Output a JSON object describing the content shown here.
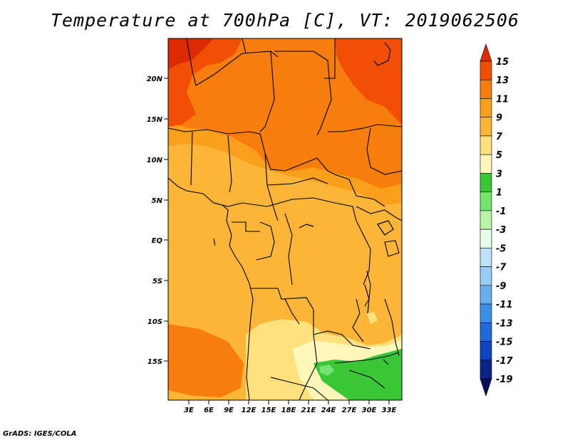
{
  "title": "Temperature at 700hPa [C], VT: 2019062506",
  "credit": "GrADS: IGES/COLA",
  "map": {
    "lat_ticks": [
      "20N",
      "15N",
      "10N",
      "5N",
      "EQ",
      "5S",
      "10S",
      "15S"
    ],
    "lon_ticks": [
      "3E",
      "6E",
      "9E",
      "12E",
      "15E",
      "18E",
      "21E",
      "24E",
      "27E",
      "30E",
      "33E"
    ]
  },
  "colorbar": {
    "levels": [
      "15",
      "13",
      "11",
      "9",
      "7",
      "5",
      "3",
      "1",
      "-1",
      "-3",
      "-5",
      "-7",
      "-9",
      "-11",
      "-13",
      "-15",
      "-17",
      "-19"
    ],
    "colors": [
      "#dd2a02",
      "#f24f06",
      "#f77d0d",
      "#fa9f1b",
      "#fbb538",
      "#fee07c",
      "#fff7ba",
      "#39c738",
      "#75e46e",
      "#b8f5a8",
      "#e6fce7",
      "#bfe2fb",
      "#98cdf5",
      "#6aaeef",
      "#3c8ee6",
      "#1f6ad8",
      "#0c45bd",
      "#0a2386",
      "#09105b"
    ]
  }
}
